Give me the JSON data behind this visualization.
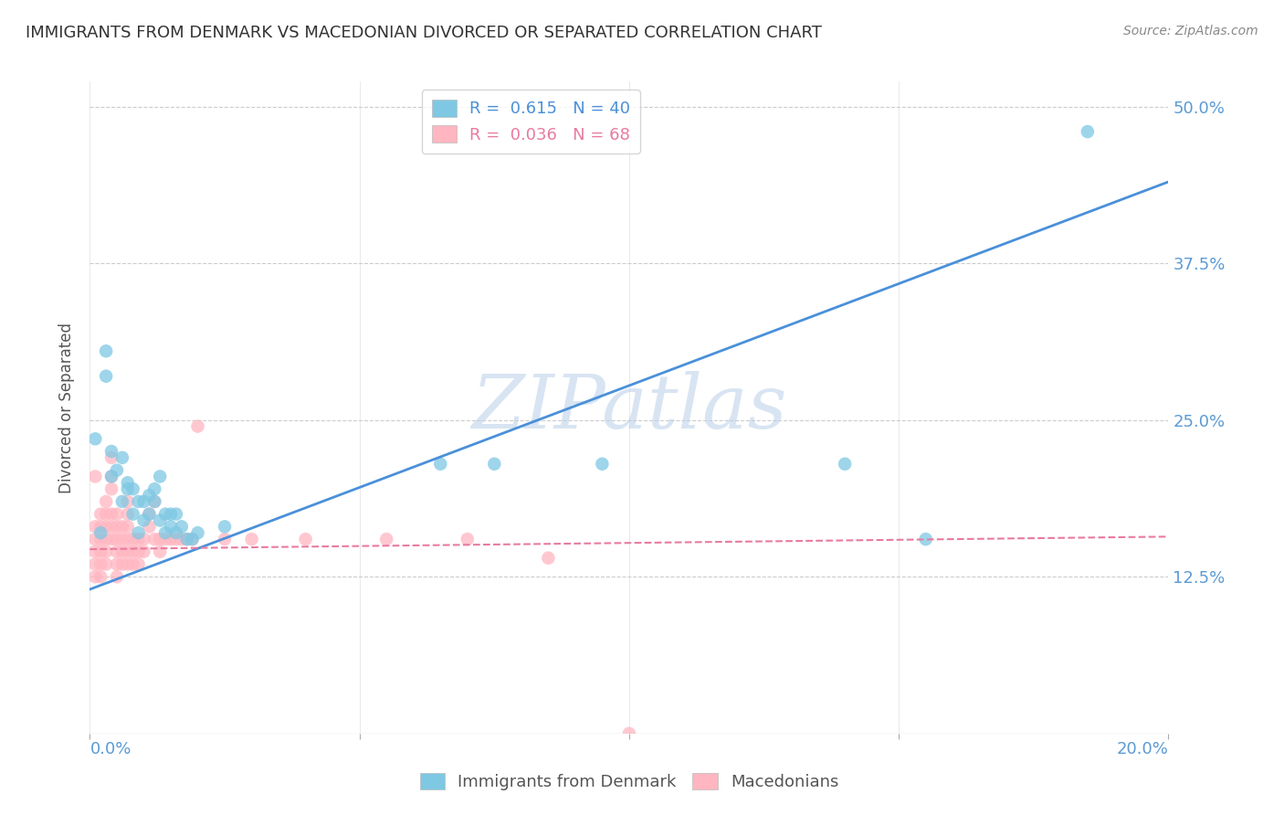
{
  "title": "IMMIGRANTS FROM DENMARK VS MACEDONIAN DIVORCED OR SEPARATED CORRELATION CHART",
  "source": "Source: ZipAtlas.com",
  "ylabel": "Divorced or Separated",
  "yticks": [
    0.0,
    0.125,
    0.25,
    0.375,
    0.5
  ],
  "ytick_labels": [
    "",
    "12.5%",
    "25.0%",
    "37.5%",
    "50.0%"
  ],
  "xlim": [
    0.0,
    0.2
  ],
  "ylim": [
    0.0,
    0.52
  ],
  "legend_r1": "R =  0.615   N = 40",
  "legend_r2": "R =  0.036   N = 68",
  "color_blue": "#7ec8e3",
  "color_pink": "#ffb6c1",
  "line_blue": "#4a90d9",
  "line_pink": "#e87ba0",
  "watermark": "ZIPatlas",
  "denmark_points": [
    [
      0.001,
      0.235
    ],
    [
      0.002,
      0.16
    ],
    [
      0.003,
      0.305
    ],
    [
      0.003,
      0.285
    ],
    [
      0.004,
      0.205
    ],
    [
      0.004,
      0.225
    ],
    [
      0.005,
      0.21
    ],
    [
      0.006,
      0.185
    ],
    [
      0.006,
      0.22
    ],
    [
      0.007,
      0.195
    ],
    [
      0.007,
      0.2
    ],
    [
      0.008,
      0.195
    ],
    [
      0.008,
      0.175
    ],
    [
      0.009,
      0.185
    ],
    [
      0.009,
      0.16
    ],
    [
      0.01,
      0.185
    ],
    [
      0.01,
      0.17
    ],
    [
      0.011,
      0.19
    ],
    [
      0.011,
      0.175
    ],
    [
      0.012,
      0.185
    ],
    [
      0.012,
      0.195
    ],
    [
      0.013,
      0.205
    ],
    [
      0.013,
      0.17
    ],
    [
      0.014,
      0.175
    ],
    [
      0.014,
      0.16
    ],
    [
      0.015,
      0.175
    ],
    [
      0.015,
      0.165
    ],
    [
      0.016,
      0.175
    ],
    [
      0.016,
      0.16
    ],
    [
      0.017,
      0.165
    ],
    [
      0.018,
      0.155
    ],
    [
      0.019,
      0.155
    ],
    [
      0.02,
      0.16
    ],
    [
      0.025,
      0.165
    ],
    [
      0.065,
      0.215
    ],
    [
      0.075,
      0.215
    ],
    [
      0.095,
      0.215
    ],
    [
      0.14,
      0.215
    ],
    [
      0.155,
      0.155
    ],
    [
      0.185,
      0.48
    ]
  ],
  "macedonian_points": [
    [
      0.001,
      0.155
    ],
    [
      0.001,
      0.205
    ],
    [
      0.001,
      0.165
    ],
    [
      0.001,
      0.145
    ],
    [
      0.001,
      0.135
    ],
    [
      0.001,
      0.125
    ],
    [
      0.002,
      0.175
    ],
    [
      0.002,
      0.165
    ],
    [
      0.002,
      0.155
    ],
    [
      0.002,
      0.145
    ],
    [
      0.002,
      0.135
    ],
    [
      0.002,
      0.125
    ],
    [
      0.003,
      0.185
    ],
    [
      0.003,
      0.175
    ],
    [
      0.003,
      0.165
    ],
    [
      0.003,
      0.155
    ],
    [
      0.003,
      0.145
    ],
    [
      0.003,
      0.135
    ],
    [
      0.004,
      0.22
    ],
    [
      0.004,
      0.205
    ],
    [
      0.004,
      0.195
    ],
    [
      0.004,
      0.175
    ],
    [
      0.004,
      0.165
    ],
    [
      0.004,
      0.155
    ],
    [
      0.005,
      0.175
    ],
    [
      0.005,
      0.165
    ],
    [
      0.005,
      0.155
    ],
    [
      0.005,
      0.145
    ],
    [
      0.005,
      0.135
    ],
    [
      0.005,
      0.125
    ],
    [
      0.006,
      0.165
    ],
    [
      0.006,
      0.155
    ],
    [
      0.006,
      0.145
    ],
    [
      0.006,
      0.135
    ],
    [
      0.007,
      0.185
    ],
    [
      0.007,
      0.175
    ],
    [
      0.007,
      0.165
    ],
    [
      0.007,
      0.155
    ],
    [
      0.007,
      0.145
    ],
    [
      0.007,
      0.135
    ],
    [
      0.008,
      0.155
    ],
    [
      0.008,
      0.145
    ],
    [
      0.008,
      0.135
    ],
    [
      0.009,
      0.155
    ],
    [
      0.009,
      0.145
    ],
    [
      0.009,
      0.135
    ],
    [
      0.01,
      0.155
    ],
    [
      0.01,
      0.145
    ],
    [
      0.011,
      0.175
    ],
    [
      0.011,
      0.165
    ],
    [
      0.012,
      0.185
    ],
    [
      0.012,
      0.155
    ],
    [
      0.013,
      0.155
    ],
    [
      0.013,
      0.145
    ],
    [
      0.014,
      0.155
    ],
    [
      0.015,
      0.155
    ],
    [
      0.016,
      0.155
    ],
    [
      0.017,
      0.155
    ],
    [
      0.018,
      0.155
    ],
    [
      0.019,
      0.155
    ],
    [
      0.02,
      0.245
    ],
    [
      0.025,
      0.155
    ],
    [
      0.03,
      0.155
    ],
    [
      0.04,
      0.155
    ],
    [
      0.055,
      0.155
    ],
    [
      0.07,
      0.155
    ],
    [
      0.085,
      0.14
    ],
    [
      0.1,
      0.0
    ]
  ],
  "denmark_line": {
    "x0": 0.0,
    "y0": 0.115,
    "x1": 0.2,
    "y1": 0.44
  },
  "macedonian_line": {
    "x0": 0.0,
    "y0": 0.147,
    "x1": 0.2,
    "y1": 0.157
  }
}
